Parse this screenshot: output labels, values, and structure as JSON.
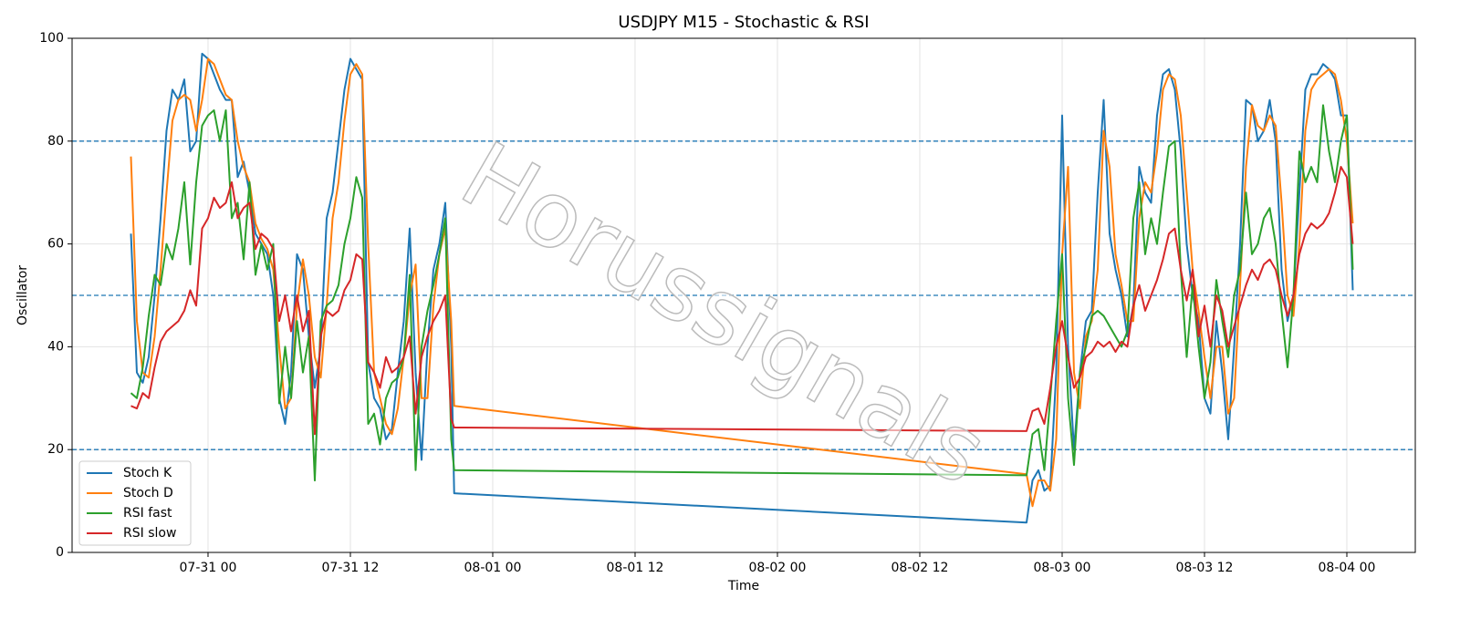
{
  "chart_data": {
    "type": "line",
    "title": "USDJPY M15 - Stochastic & RSI",
    "xlabel": "Time",
    "ylabel": "Oscillator",
    "watermark": "Horussignals",
    "xlim": [
      -11.46,
      101.77
    ],
    "ylim": [
      0,
      100
    ],
    "xticks": [
      {
        "value": 0,
        "label": "07-31 00"
      },
      {
        "value": 12,
        "label": "07-31 12"
      },
      {
        "value": 24,
        "label": "08-01 00"
      },
      {
        "value": 36,
        "label": "08-01 12"
      },
      {
        "value": 48,
        "label": "08-02 00"
      },
      {
        "value": 60,
        "label": "08-02 12"
      },
      {
        "value": 72,
        "label": "08-03 00"
      },
      {
        "value": 84,
        "label": "08-03 12"
      },
      {
        "value": 96,
        "label": "08-04 00"
      }
    ],
    "yticks": [
      0,
      20,
      40,
      60,
      80,
      100
    ],
    "grid": true,
    "hlines": [
      20,
      50,
      80
    ],
    "hline_color": "#1f77b4",
    "legend": "lower left",
    "x": [
      -6.5,
      -6,
      -5.5,
      -5,
      -4.5,
      -4,
      -3.5,
      -3,
      -2.5,
      -2,
      -1.5,
      -1,
      -0.5,
      0,
      0.5,
      1,
      1.5,
      2,
      2.5,
      3,
      3.5,
      4,
      4.5,
      5,
      5.5,
      6,
      6.5,
      7,
      7.5,
      8,
      8.5,
      9,
      9.5,
      10,
      10.5,
      11,
      11.5,
      12,
      12.5,
      13,
      13.5,
      14,
      14.5,
      15,
      15.5,
      16,
      16.5,
      17,
      17.5,
      18,
      18.5,
      19,
      19.5,
      20,
      20.5,
      20.75,
      69,
      69.5,
      70,
      70.5,
      71,
      71.5,
      72,
      72.5,
      73,
      73.5,
      74,
      74.5,
      75,
      75.5,
      76,
      76.5,
      77,
      77.5,
      78,
      78.5,
      79,
      79.5,
      80,
      80.5,
      81,
      81.5,
      82,
      82.5,
      83,
      83.5,
      84,
      84.5,
      85,
      85.5,
      86,
      86.5,
      87,
      87.5,
      88,
      88.5,
      89,
      89.5,
      90,
      90.5,
      91,
      91.5,
      92,
      92.5,
      93,
      93.5,
      94,
      94.5,
      95,
      95.5,
      96,
      96.5
    ],
    "series": [
      {
        "name": "Stoch K",
        "color": "#1f77b4",
        "values": [
          62,
          35,
          33,
          38,
          50,
          65,
          82,
          90,
          88,
          92,
          78,
          80,
          97,
          96,
          93,
          90,
          88,
          88,
          73,
          76,
          70,
          62,
          60,
          58,
          50,
          30,
          25,
          35,
          58,
          55,
          42,
          32,
          40,
          65,
          70,
          80,
          90,
          96,
          94,
          92,
          37,
          30,
          28,
          22,
          24,
          35,
          45,
          63,
          35,
          18,
          40,
          55,
          60,
          68,
          40,
          11.5,
          5.8,
          14,
          16,
          12,
          13,
          35,
          85,
          40,
          20,
          35,
          45,
          47,
          70,
          88,
          62,
          55,
          50,
          42,
          48,
          75,
          70,
          68,
          85,
          93,
          94,
          90,
          78,
          60,
          50,
          45,
          30,
          27,
          45,
          35,
          22,
          40,
          60,
          88,
          87,
          80,
          82,
          88,
          80,
          55,
          45,
          50,
          70,
          90,
          93,
          93,
          95,
          94,
          92,
          85,
          85,
          51
        ]
      },
      {
        "name": "Stoch D",
        "color": "#ff7f0e",
        "values": [
          77,
          45,
          35,
          34,
          42,
          55,
          70,
          84,
          88,
          89,
          88,
          82,
          88,
          96,
          95,
          92,
          89,
          88,
          80,
          75,
          72,
          64,
          61,
          59,
          55,
          40,
          28,
          30,
          48,
          57,
          50,
          38,
          34,
          48,
          65,
          72,
          84,
          93,
          95,
          93,
          60,
          35,
          30,
          25,
          23,
          28,
          38,
          50,
          56,
          30,
          30,
          48,
          58,
          63,
          45,
          28.5,
          15.2,
          9,
          14,
          14,
          12,
          22,
          58,
          75,
          35,
          28,
          42,
          45,
          55,
          82,
          75,
          58,
          52,
          45,
          45,
          65,
          72,
          70,
          78,
          90,
          93,
          92,
          85,
          70,
          55,
          47,
          38,
          30,
          40,
          40,
          27,
          30,
          52,
          75,
          87,
          83,
          82,
          85,
          83,
          68,
          50,
          46,
          60,
          82,
          90,
          92,
          93,
          94,
          93,
          88,
          80,
          64
        ]
      },
      {
        "name": "RSI fast",
        "color": "#2ca02c",
        "values": [
          31,
          30,
          36,
          46,
          54,
          52,
          60,
          57,
          63,
          72,
          56,
          72,
          83,
          85,
          86,
          80,
          86,
          65,
          68,
          57,
          72,
          54,
          60,
          55,
          60,
          29,
          40,
          30,
          45,
          35,
          42,
          14,
          45,
          48,
          49,
          52,
          60,
          65,
          73,
          69,
          25,
          27,
          21,
          30,
          33,
          34,
          38,
          54,
          16,
          40,
          47,
          52,
          58,
          65,
          22,
          16,
          15,
          23,
          24,
          16,
          30,
          45,
          58,
          30,
          17,
          35,
          40,
          46,
          47,
          46,
          44,
          42,
          40,
          43,
          65,
          72,
          58,
          65,
          60,
          70,
          79,
          80,
          55,
          38,
          52,
          40,
          30,
          37,
          53,
          45,
          38,
          50,
          55,
          70,
          58,
          60,
          65,
          67,
          60,
          47,
          36,
          50,
          78,
          72,
          75,
          72,
          87,
          78,
          72,
          80,
          85,
          55
        ]
      },
      {
        "name": "RSI slow",
        "color": "#d62728",
        "values": [
          28.5,
          28,
          31,
          30,
          36,
          41,
          43,
          44,
          45,
          47,
          51,
          48,
          63,
          65,
          69,
          67,
          68,
          72,
          65,
          67,
          68,
          59,
          62,
          61,
          59,
          45,
          50,
          43,
          50,
          43,
          47,
          23,
          42,
          47,
          46,
          47,
          51,
          53,
          58,
          57,
          37,
          35,
          32,
          38,
          35,
          36,
          38,
          42,
          27,
          38,
          42,
          45,
          47,
          50,
          26,
          24.3,
          23.6,
          27.5,
          28,
          25,
          32,
          40,
          45,
          38,
          32,
          34,
          38,
          39,
          41,
          40,
          41,
          39,
          41,
          40,
          48,
          52,
          47,
          50,
          53,
          57,
          62,
          63,
          55,
          49,
          55,
          42,
          48,
          40,
          50,
          47,
          40,
          44,
          48,
          52,
          55,
          53,
          56,
          57,
          55,
          50,
          46,
          50,
          58,
          62,
          64,
          63,
          64,
          66,
          70,
          75,
          73,
          60
        ]
      }
    ]
  }
}
